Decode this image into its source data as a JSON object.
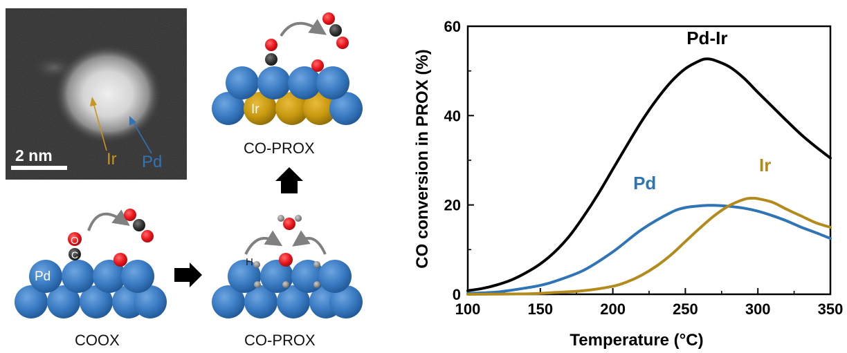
{
  "figure": {
    "stem": {
      "scale_bar_label": "2 nm",
      "label_ir": "Ir",
      "label_pd": "Pd",
      "color_ir": "#c8951e",
      "color_pd": "#2f74b5"
    },
    "schemes": {
      "coox": {
        "caption": "COOX",
        "atom_label_pd": "Pd",
        "label_o": "O",
        "label_c": "C"
      },
      "coprox_pd": {
        "caption": "CO-PROX",
        "label_h": "H"
      },
      "coprox_pdir": {
        "caption": "CO-PROX",
        "atom_label_ir": "Ir"
      }
    },
    "atom_colors": {
      "pd": "#3b7cc4",
      "ir": "#c99a10",
      "oxygen": "#e8141a",
      "carbon": "#333333",
      "hydrogen": "#8f8f8f"
    }
  },
  "chart_data": {
    "type": "line",
    "xlabel": "Temperature (°C)",
    "ylabel": "CO conversion in PROX (%)",
    "xlim": [
      100,
      350
    ],
    "ylim": [
      0,
      60
    ],
    "x_ticks": [
      100,
      150,
      200,
      250,
      300,
      350
    ],
    "y_ticks": [
      0,
      20,
      40,
      60
    ],
    "grid": false,
    "series": [
      {
        "name": "Pd-Ir",
        "color": "#000000",
        "x": [
          100,
          110,
          120,
          130,
          140,
          150,
          160,
          170,
          180,
          190,
          200,
          210,
          220,
          230,
          240,
          250,
          260,
          265,
          270,
          280,
          290,
          300,
          310,
          320,
          330,
          340,
          350
        ],
        "y": [
          0.8,
          1.3,
          2.1,
          3.2,
          4.8,
          6.8,
          9.5,
          13.0,
          17.5,
          22.5,
          28.0,
          33.5,
          38.8,
          43.5,
          47.5,
          50.5,
          52.3,
          52.7,
          52.4,
          51.0,
          48.5,
          45.2,
          42.0,
          38.8,
          35.7,
          33.0,
          30.5
        ]
      },
      {
        "name": "Pd",
        "color": "#2f74b5",
        "x": [
          100,
          120,
          140,
          150,
          160,
          180,
          200,
          220,
          240,
          250,
          260,
          265,
          270,
          280,
          290,
          300,
          310,
          320,
          330,
          340,
          350
        ],
        "y": [
          0.2,
          0.5,
          1.4,
          2.0,
          2.9,
          5.4,
          9.5,
          14.5,
          18.3,
          19.4,
          19.8,
          19.9,
          19.9,
          19.7,
          19.3,
          18.6,
          17.6,
          16.4,
          15.0,
          13.8,
          12.5
        ]
      },
      {
        "name": "Ir",
        "color": "#b38a1c",
        "x": [
          100,
          140,
          160,
          180,
          200,
          210,
          220,
          230,
          240,
          250,
          260,
          270,
          280,
          290,
          295,
          300,
          310,
          320,
          330,
          340,
          350
        ],
        "y": [
          0.0,
          0.1,
          0.4,
          0.8,
          1.8,
          2.8,
          4.3,
          6.3,
          8.8,
          11.8,
          14.8,
          17.6,
          19.8,
          21.2,
          21.5,
          21.4,
          20.6,
          19.0,
          17.5,
          16.0,
          15.0
        ]
      }
    ]
  }
}
